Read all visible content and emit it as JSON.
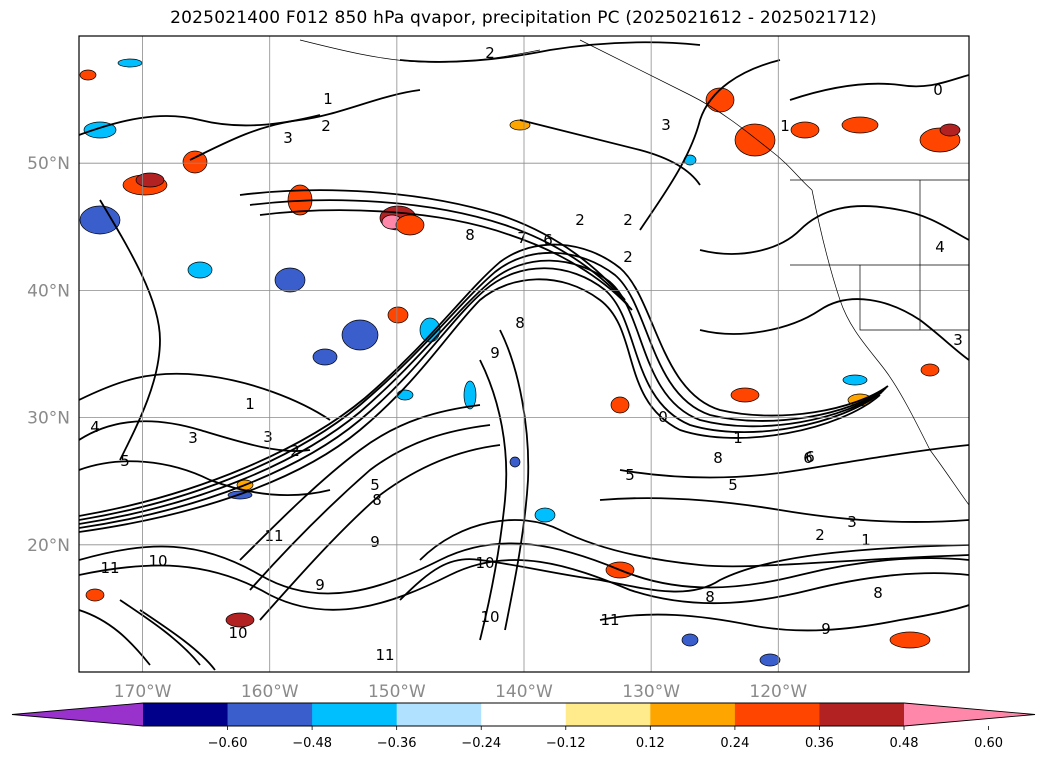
{
  "chart_data": {
    "type": "heatmap",
    "title": "2025021400 F012 850 hPa qvapor, precipitation PC (2025021612 - 2025021712)",
    "lon_ticks": [
      "170°W",
      "160°W",
      "150°W",
      "140°W",
      "130°W",
      "120°W"
    ],
    "lon_values": [
      -170,
      -160,
      -150,
      -140,
      -130,
      -120
    ],
    "lat_ticks": [
      "50°N",
      "40°N",
      "30°N",
      "20°N"
    ],
    "lat_values": [
      50,
      40,
      30,
      20
    ],
    "xlim": [
      -175,
      -105
    ],
    "ylim": [
      10,
      60
    ],
    "grid": true,
    "colorbar": {
      "extend": "both",
      "levels": [
        -0.72,
        -0.6,
        -0.48,
        -0.36,
        -0.24,
        -0.12,
        0.12,
        0.24,
        0.36,
        0.48,
        0.6,
        0.72
      ],
      "tick_labels": [
        "−0.60",
        "−0.48",
        "−0.36",
        "−0.24",
        "−0.12",
        "0.12",
        "0.24",
        "0.36",
        "0.48",
        "0.60"
      ],
      "colors": [
        "#9932cc",
        "#00008b",
        "#3a5fcd",
        "#00bfff",
        "#b0e2ff",
        "#ffffff",
        "#ffeb8c",
        "#ffa500",
        "#ff4500",
        "#b22222",
        "#ff88aa"
      ]
    },
    "contour_labels": [
      "2",
      "1",
      "2",
      "3",
      "0",
      "1",
      "3",
      "2",
      "7",
      "6",
      "8",
      "9",
      "2",
      "2",
      "0",
      "1",
      "8",
      "6",
      "5",
      "5",
      "3",
      "3",
      "2",
      "1",
      "5",
      "8",
      "9",
      "11",
      "10",
      "11",
      "10",
      "9",
      "10",
      "11",
      "9",
      "8",
      "11",
      "10",
      "3",
      "2",
      "1",
      "4",
      "8",
      "4",
      "5",
      "3",
      "8",
      "6"
    ]
  }
}
